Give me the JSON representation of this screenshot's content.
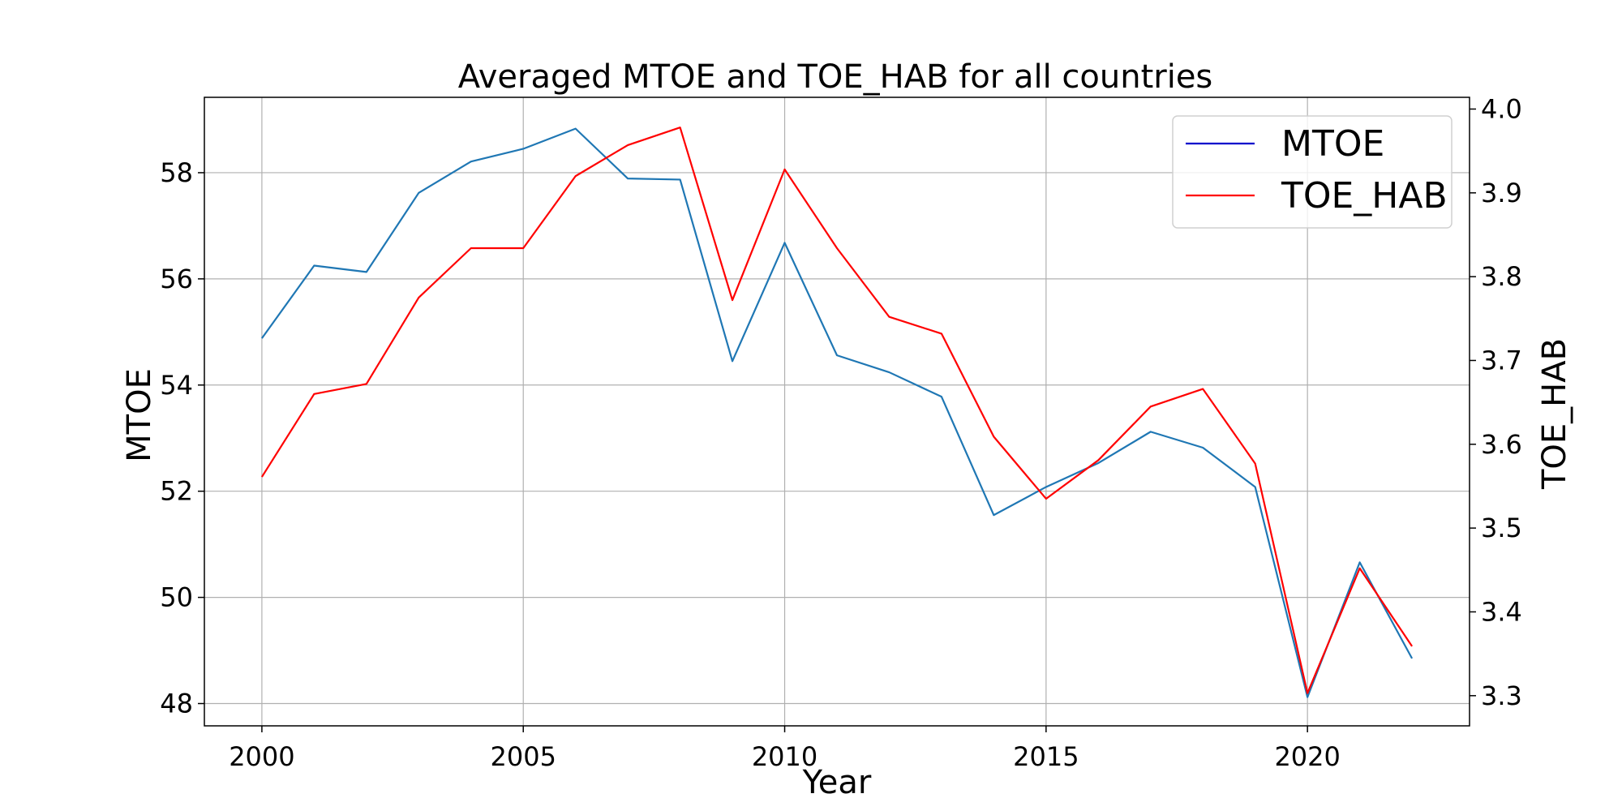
{
  "chart_data": {
    "type": "line",
    "title": "Averaged MTOE and TOE_HAB for all countries",
    "xlabel": "Year",
    "ylabel_left": "MTOE",
    "ylabel_right": "TOE_HAB",
    "x": [
      2000,
      2001,
      2002,
      2003,
      2004,
      2005,
      2006,
      2007,
      2008,
      2009,
      2010,
      2011,
      2012,
      2013,
      2014,
      2015,
      2016,
      2017,
      2018,
      2019,
      2020,
      2021,
      2022
    ],
    "xlim": [
      1998.9,
      2023.1
    ],
    "ylim_left": [
      47.58,
      59.42
    ],
    "ylim_right": [
      3.264,
      4.014
    ],
    "x_ticks": [
      "2000",
      "2005",
      "2010",
      "2015",
      "2020"
    ],
    "y_ticks_left": [
      "48",
      "50",
      "52",
      "54",
      "56",
      "58"
    ],
    "y_ticks_right": [
      "3.3",
      "3.4",
      "3.5",
      "3.6",
      "3.7",
      "3.8",
      "3.9",
      "4.0"
    ],
    "grid": true,
    "legend_position": "top-right",
    "legend": [
      {
        "label": "MTOE",
        "color": "#0000cc"
      },
      {
        "label": "TOE_HAB",
        "color": "#ff0000"
      }
    ],
    "series": [
      {
        "name": "MTOE",
        "axis": "left",
        "color": "#1f77b4",
        "values": [
          54.88,
          56.25,
          56.13,
          57.62,
          58.21,
          58.45,
          58.83,
          57.89,
          57.87,
          54.45,
          56.68,
          54.56,
          54.24,
          53.78,
          51.55,
          52.08,
          52.53,
          53.12,
          52.82,
          52.08,
          48.12,
          50.66,
          48.85
        ]
      },
      {
        "name": "TOE_HAB",
        "axis": "right",
        "color": "#ff0000",
        "values": [
          3.561,
          3.66,
          3.672,
          3.775,
          3.834,
          3.834,
          3.92,
          3.957,
          3.978,
          3.772,
          3.928,
          3.834,
          3.752,
          3.732,
          3.609,
          3.535,
          3.581,
          3.645,
          3.666,
          3.577,
          3.303,
          3.452,
          3.359
        ]
      }
    ]
  }
}
